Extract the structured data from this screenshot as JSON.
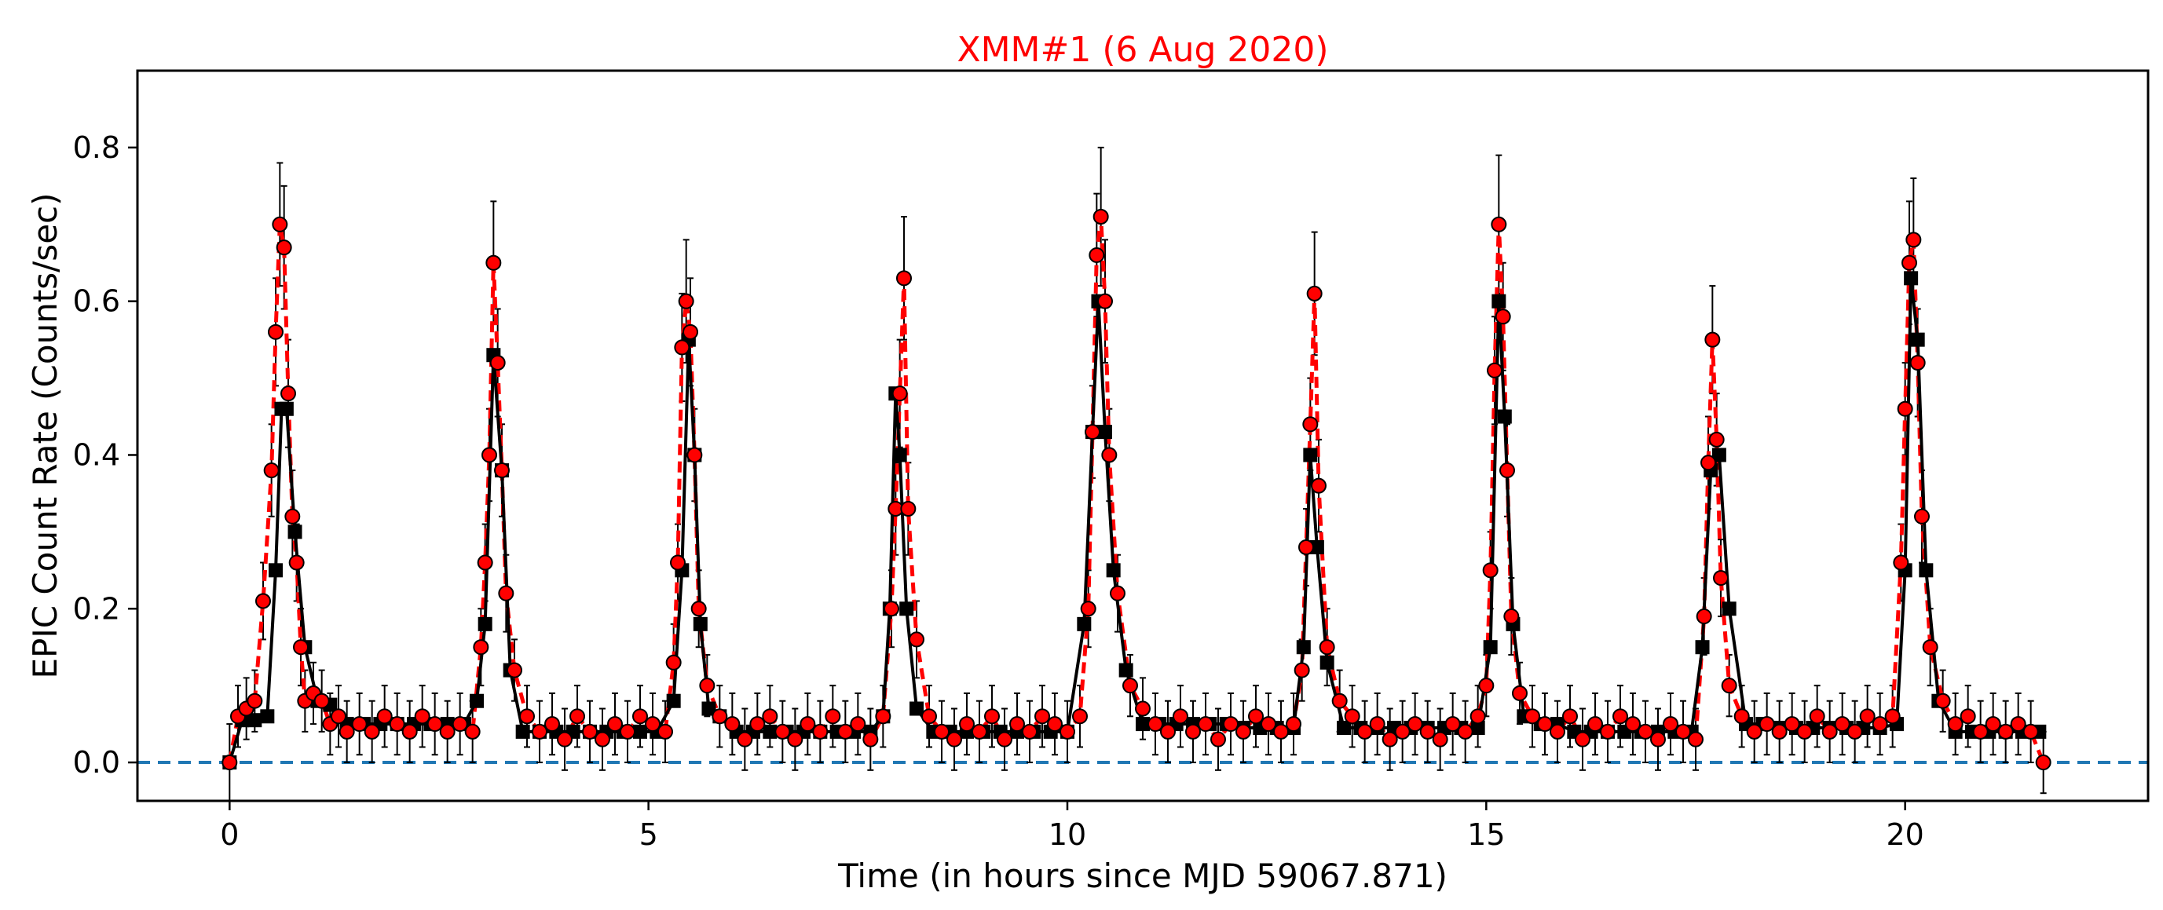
{
  "chart_data": {
    "type": "scatter",
    "title": "XMM#1 (6 Aug 2020)",
    "title_color": "#ff0000",
    "xlabel": "Time (in hours since MJD 59067.871)",
    "ylabel": "EPIC Count Rate (Counts/sec)",
    "xlim": [
      -1.1,
      22.9
    ],
    "ylim": [
      -0.05,
      0.9
    ],
    "xticks": [
      0,
      5,
      10,
      15,
      20
    ],
    "xtick_labels": [
      "0",
      "5",
      "10",
      "15",
      "20"
    ],
    "yticks": [
      0.0,
      0.2,
      0.4,
      0.6,
      0.8
    ],
    "ytick_labels": [
      "0.0",
      "0.2",
      "0.4",
      "0.6",
      "0.8"
    ],
    "grid": false,
    "legend": "none",
    "reference_line": {
      "y": 0.0,
      "style": "dashed",
      "color": "#1f77b4"
    },
    "series": [
      {
        "role": "binned data with error bars",
        "marker": "circle",
        "marker_color": "#ff0000",
        "edge_color": "#000000",
        "connector": "dashed",
        "connector_color": "#ff0000",
        "error_color": "#000000",
        "x": [
          0.0,
          0.1,
          0.2,
          0.3,
          0.4,
          0.5,
          0.55,
          0.6,
          0.65,
          0.7,
          0.75,
          0.8,
          0.85,
          0.9,
          1.0,
          1.1,
          1.2,
          1.3,
          1.4,
          1.55,
          1.7,
          1.85,
          2.0,
          2.15,
          2.3,
          2.45,
          2.6,
          2.75,
          2.9,
          3.0,
          3.05,
          3.1,
          3.15,
          3.2,
          3.25,
          3.3,
          3.4,
          3.55,
          3.7,
          3.85,
          4.0,
          4.15,
          4.3,
          4.45,
          4.6,
          4.75,
          4.9,
          5.05,
          5.2,
          5.3,
          5.35,
          5.4,
          5.45,
          5.5,
          5.55,
          5.6,
          5.7,
          5.85,
          6.0,
          6.15,
          6.3,
          6.45,
          6.6,
          6.75,
          6.9,
          7.05,
          7.2,
          7.35,
          7.5,
          7.65,
          7.8,
          7.9,
          7.95,
          8.0,
          8.05,
          8.1,
          8.2,
          8.35,
          8.5,
          8.65,
          8.8,
          8.95,
          9.1,
          9.25,
          9.4,
          9.55,
          9.7,
          9.85,
          10.0,
          10.15,
          10.25,
          10.3,
          10.35,
          10.4,
          10.45,
          10.5,
          10.6,
          10.75,
          10.9,
          11.05,
          11.2,
          11.35,
          11.5,
          11.65,
          11.8,
          11.95,
          12.1,
          12.25,
          12.4,
          12.55,
          12.7,
          12.8,
          12.85,
          12.9,
          12.95,
          13.0,
          13.1,
          13.25,
          13.4,
          13.55,
          13.7,
          13.85,
          14.0,
          14.15,
          14.3,
          14.45,
          14.6,
          14.75,
          14.9,
          15.0,
          15.05,
          15.1,
          15.15,
          15.2,
          15.25,
          15.3,
          15.4,
          15.55,
          15.7,
          15.85,
          16.0,
          16.15,
          16.3,
          16.45,
          16.6,
          16.75,
          16.9,
          17.05,
          17.2,
          17.35,
          17.5,
          17.6,
          17.65,
          17.7,
          17.75,
          17.8,
          17.9,
          18.05,
          18.2,
          18.35,
          18.5,
          18.65,
          18.8,
          18.95,
          19.1,
          19.25,
          19.4,
          19.55,
          19.7,
          19.85,
          19.95,
          20.0,
          20.05,
          20.1,
          20.15,
          20.2,
          20.3,
          20.45,
          20.6,
          20.75,
          20.9,
          21.05,
          21.2,
          21.35,
          21.5,
          21.65
        ],
        "y": [
          0.0,
          0.06,
          0.07,
          0.08,
          0.21,
          0.38,
          0.56,
          0.7,
          0.67,
          0.48,
          0.32,
          0.26,
          0.15,
          0.08,
          0.09,
          0.08,
          0.05,
          0.06,
          0.04,
          0.05,
          0.04,
          0.06,
          0.05,
          0.04,
          0.06,
          0.05,
          0.04,
          0.05,
          0.04,
          0.15,
          0.26,
          0.4,
          0.65,
          0.52,
          0.38,
          0.22,
          0.12,
          0.06,
          0.04,
          0.05,
          0.03,
          0.06,
          0.04,
          0.03,
          0.05,
          0.04,
          0.06,
          0.05,
          0.04,
          0.13,
          0.26,
          0.54,
          0.6,
          0.56,
          0.4,
          0.2,
          0.1,
          0.06,
          0.05,
          0.03,
          0.05,
          0.06,
          0.04,
          0.03,
          0.05,
          0.04,
          0.06,
          0.04,
          0.05,
          0.03,
          0.06,
          0.2,
          0.33,
          0.48,
          0.63,
          0.33,
          0.16,
          0.06,
          0.04,
          0.03,
          0.05,
          0.04,
          0.06,
          0.03,
          0.05,
          0.04,
          0.06,
          0.05,
          0.04,
          0.06,
          0.2,
          0.43,
          0.66,
          0.71,
          0.6,
          0.4,
          0.22,
          0.1,
          0.07,
          0.05,
          0.04,
          0.06,
          0.04,
          0.05,
          0.03,
          0.05,
          0.04,
          0.06,
          0.05,
          0.04,
          0.05,
          0.12,
          0.28,
          0.44,
          0.61,
          0.36,
          0.15,
          0.08,
          0.06,
          0.04,
          0.05,
          0.03,
          0.04,
          0.05,
          0.04,
          0.03,
          0.05,
          0.04,
          0.06,
          0.1,
          0.25,
          0.51,
          0.7,
          0.58,
          0.38,
          0.19,
          0.09,
          0.06,
          0.05,
          0.04,
          0.06,
          0.03,
          0.05,
          0.04,
          0.06,
          0.05,
          0.04,
          0.03,
          0.05,
          0.04,
          0.03,
          0.19,
          0.39,
          0.55,
          0.42,
          0.24,
          0.1,
          0.06,
          0.04,
          0.05,
          0.04,
          0.05,
          0.04,
          0.06,
          0.04,
          0.05,
          0.04,
          0.06,
          0.05,
          0.06,
          0.26,
          0.46,
          0.65,
          0.68,
          0.52,
          0.32,
          0.15,
          0.08,
          0.05,
          0.06,
          0.04,
          0.05,
          0.04,
          0.05,
          0.04,
          0.0
        ],
        "err": [
          0.05,
          0.04,
          0.04,
          0.04,
          0.05,
          0.06,
          0.07,
          0.08,
          0.08,
          0.07,
          0.06,
          0.05,
          0.05,
          0.04,
          0.04,
          0.04,
          0.04,
          0.04,
          0.04,
          0.04,
          0.04,
          0.04,
          0.04,
          0.04,
          0.04,
          0.04,
          0.04,
          0.04,
          0.04,
          0.05,
          0.05,
          0.06,
          0.08,
          0.07,
          0.06,
          0.05,
          0.04,
          0.04,
          0.04,
          0.04,
          0.04,
          0.04,
          0.04,
          0.04,
          0.04,
          0.04,
          0.04,
          0.04,
          0.04,
          0.05,
          0.05,
          0.07,
          0.08,
          0.07,
          0.06,
          0.05,
          0.04,
          0.04,
          0.04,
          0.04,
          0.04,
          0.04,
          0.04,
          0.04,
          0.04,
          0.04,
          0.04,
          0.04,
          0.04,
          0.04,
          0.04,
          0.05,
          0.06,
          0.07,
          0.08,
          0.06,
          0.05,
          0.04,
          0.04,
          0.04,
          0.04,
          0.04,
          0.04,
          0.04,
          0.04,
          0.04,
          0.04,
          0.04,
          0.04,
          0.04,
          0.05,
          0.06,
          0.08,
          0.09,
          0.08,
          0.06,
          0.05,
          0.04,
          0.04,
          0.04,
          0.04,
          0.04,
          0.04,
          0.04,
          0.04,
          0.04,
          0.04,
          0.04,
          0.04,
          0.04,
          0.04,
          0.04,
          0.05,
          0.06,
          0.08,
          0.06,
          0.05,
          0.04,
          0.04,
          0.04,
          0.04,
          0.04,
          0.04,
          0.04,
          0.04,
          0.04,
          0.04,
          0.04,
          0.04,
          0.04,
          0.05,
          0.07,
          0.09,
          0.07,
          0.06,
          0.05,
          0.04,
          0.04,
          0.04,
          0.04,
          0.04,
          0.04,
          0.04,
          0.04,
          0.04,
          0.04,
          0.04,
          0.04,
          0.04,
          0.04,
          0.04,
          0.05,
          0.06,
          0.07,
          0.06,
          0.05,
          0.04,
          0.04,
          0.04,
          0.04,
          0.04,
          0.04,
          0.04,
          0.04,
          0.04,
          0.04,
          0.04,
          0.04,
          0.04,
          0.04,
          0.05,
          0.06,
          0.08,
          0.08,
          0.07,
          0.06,
          0.05,
          0.04,
          0.04,
          0.04,
          0.04,
          0.04,
          0.04,
          0.04,
          0.04,
          0.04
        ]
      },
      {
        "role": "coarse-binned light curve",
        "marker": "square",
        "color": "#000000",
        "connector": "solid",
        "x": [
          0.0,
          0.15,
          0.3,
          0.45,
          0.55,
          0.62,
          0.68,
          0.78,
          0.9,
          1.05,
          1.2,
          1.4,
          1.6,
          1.8,
          2.0,
          2.2,
          2.4,
          2.6,
          2.8,
          2.95,
          3.05,
          3.15,
          3.25,
          3.35,
          3.5,
          3.7,
          3.9,
          4.1,
          4.3,
          4.5,
          4.7,
          4.9,
          5.1,
          5.3,
          5.4,
          5.48,
          5.55,
          5.62,
          5.72,
          5.85,
          6.05,
          6.25,
          6.45,
          6.65,
          6.85,
          7.05,
          7.25,
          7.45,
          7.65,
          7.8,
          7.88,
          7.95,
          8.0,
          8.08,
          8.2,
          8.4,
          8.6,
          8.8,
          9.0,
          9.2,
          9.4,
          9.6,
          9.8,
          10.0,
          10.2,
          10.3,
          10.37,
          10.45,
          10.55,
          10.7,
          10.9,
          11.1,
          11.3,
          11.5,
          11.7,
          11.9,
          12.1,
          12.3,
          12.5,
          12.7,
          12.82,
          12.9,
          12.98,
          13.1,
          13.3,
          13.5,
          13.7,
          13.9,
          14.1,
          14.3,
          14.5,
          14.7,
          14.9,
          15.05,
          15.15,
          15.22,
          15.32,
          15.45,
          15.65,
          15.85,
          16.05,
          16.25,
          16.45,
          16.65,
          16.85,
          17.05,
          17.25,
          17.45,
          17.58,
          17.68,
          17.78,
          17.9,
          18.1,
          18.3,
          18.5,
          18.7,
          18.9,
          19.1,
          19.3,
          19.5,
          19.7,
          19.9,
          20.0,
          20.07,
          20.15,
          20.25,
          20.4,
          20.6,
          20.8,
          21.0,
          21.2,
          21.4,
          21.6
        ],
        "y": [
          0.0,
          0.055,
          0.055,
          0.06,
          0.25,
          0.46,
          0.46,
          0.3,
          0.15,
          0.08,
          0.075,
          0.05,
          0.05,
          0.05,
          0.05,
          0.05,
          0.05,
          0.05,
          0.05,
          0.08,
          0.18,
          0.53,
          0.38,
          0.12,
          0.04,
          0.04,
          0.04,
          0.04,
          0.04,
          0.04,
          0.04,
          0.04,
          0.04,
          0.08,
          0.25,
          0.55,
          0.4,
          0.18,
          0.07,
          0.06,
          0.04,
          0.04,
          0.04,
          0.04,
          0.04,
          0.04,
          0.04,
          0.04,
          0.04,
          0.06,
          0.2,
          0.48,
          0.4,
          0.2,
          0.07,
          0.04,
          0.04,
          0.04,
          0.04,
          0.04,
          0.04,
          0.04,
          0.04,
          0.04,
          0.18,
          0.43,
          0.6,
          0.43,
          0.25,
          0.12,
          0.05,
          0.05,
          0.05,
          0.05,
          0.05,
          0.05,
          0.045,
          0.045,
          0.045,
          0.045,
          0.15,
          0.4,
          0.28,
          0.13,
          0.045,
          0.045,
          0.045,
          0.045,
          0.045,
          0.045,
          0.045,
          0.045,
          0.045,
          0.15,
          0.6,
          0.45,
          0.18,
          0.06,
          0.05,
          0.05,
          0.04,
          0.04,
          0.04,
          0.04,
          0.04,
          0.04,
          0.04,
          0.04,
          0.15,
          0.38,
          0.4,
          0.2,
          0.05,
          0.05,
          0.045,
          0.045,
          0.045,
          0.045,
          0.045,
          0.045,
          0.045,
          0.05,
          0.25,
          0.63,
          0.55,
          0.25,
          0.08,
          0.04,
          0.04,
          0.04,
          0.04,
          0.04,
          0.04
        ]
      }
    ]
  }
}
